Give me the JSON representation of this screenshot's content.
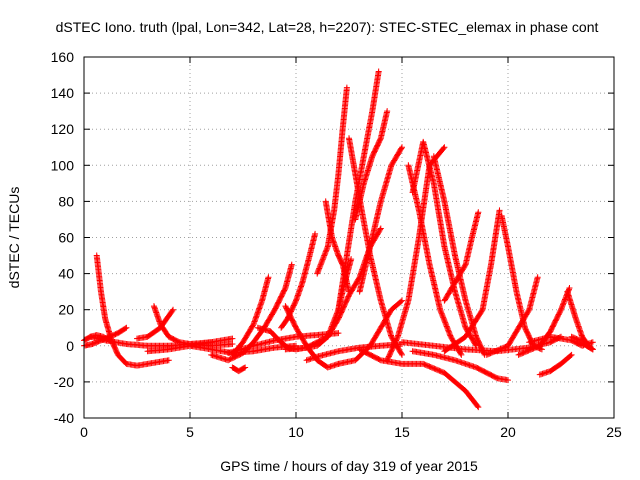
{
  "chart_data": {
    "type": "scatter",
    "title": "dSTEC Iono. truth (lpal, Lon=342, Lat=28, h=2207): STEC-STEC_elemax in phase cont",
    "xlabel": "GPS time / hours of day 319 of year 2015",
    "ylabel": "dSTEC  / TECUs",
    "xlim": [
      0,
      25
    ],
    "ylim": [
      -40,
      160
    ],
    "x_ticks": [
      0,
      5,
      10,
      15,
      20,
      25
    ],
    "y_ticks": [
      -40,
      -20,
      0,
      20,
      40,
      60,
      80,
      100,
      120,
      140,
      160
    ],
    "grid": true,
    "marker": "+",
    "series_color": "#ff0000",
    "arcs": [
      {
        "x": [
          0.0,
          0.3,
          0.6,
          0.9,
          1.2
        ],
        "y": [
          3,
          5,
          6,
          5,
          3
        ]
      },
      {
        "x": [
          0.0,
          0.4,
          0.8,
          1.2,
          1.6,
          2.0
        ],
        "y": [
          0,
          1,
          3,
          5,
          7,
          10
        ]
      },
      {
        "x": [
          0.6,
          0.8,
          1.0,
          1.3,
          1.6,
          2.0,
          2.5,
          3.0,
          3.5,
          4.0
        ],
        "y": [
          50,
          30,
          15,
          3,
          -5,
          -10,
          -11,
          -10,
          -9,
          -8
        ]
      },
      {
        "x": [
          0.3,
          1.0,
          2.0,
          3.0,
          4.0,
          5.0,
          6.0
        ],
        "y": [
          5,
          3,
          1,
          0,
          0,
          1,
          2
        ]
      },
      {
        "x": [
          3.3,
          3.6,
          4.0,
          4.5,
          5.0,
          6.0,
          7.0
        ],
        "y": [
          22,
          12,
          5,
          2,
          1,
          0,
          1
        ]
      },
      {
        "x": [
          2.5,
          3.0,
          3.6,
          4.2
        ],
        "y": [
          4,
          5,
          10,
          20
        ]
      },
      {
        "x": [
          3.0,
          4.0,
          5.0,
          6.0,
          7.0
        ],
        "y": [
          -3,
          -2,
          0,
          2,
          4
        ]
      },
      {
        "x": [
          5.0,
          6.0,
          7.0,
          8.0,
          9.0,
          10.0
        ],
        "y": [
          0,
          -2,
          -4,
          -3,
          -1,
          0
        ]
      },
      {
        "x": [
          7.0,
          7.5,
          8.0,
          8.4,
          8.7
        ],
        "y": [
          -5,
          2,
          12,
          25,
          38
        ]
      },
      {
        "x": [
          6.0,
          6.8,
          7.5,
          8.0,
          8.5,
          9.0,
          9.5,
          9.8
        ],
        "y": [
          -5,
          -8,
          -4,
          2,
          10,
          20,
          32,
          45
        ]
      },
      {
        "x": [
          7.0,
          7.3,
          7.6
        ],
        "y": [
          -12,
          -14,
          -12
        ]
      },
      {
        "x": [
          6.8,
          8.0,
          9.0,
          10.0,
          11.0,
          12.0
        ],
        "y": [
          -4,
          0,
          3,
          5,
          6,
          7
        ]
      },
      {
        "x": [
          8.2,
          8.8,
          9.2,
          9.6,
          10.0
        ],
        "y": [
          10,
          8,
          3,
          -1,
          -2
        ]
      },
      {
        "x": [
          9.3,
          9.6,
          10.0,
          10.3,
          10.6,
          10.9
        ],
        "y": [
          10,
          15,
          25,
          35,
          48,
          62
        ]
      },
      {
        "x": [
          9.5,
          10.0,
          10.5,
          11.0,
          11.5,
          12.0
        ],
        "y": [
          22,
          10,
          0,
          -8,
          -12,
          -10
        ]
      },
      {
        "x": [
          9.5,
          10.5,
          11.5,
          12.0,
          12.3,
          12.6
        ],
        "y": [
          -2,
          -1,
          5,
          20,
          35,
          48
        ]
      },
      {
        "x": [
          10.0,
          11.0,
          11.5,
          12.0,
          12.5,
          13.0,
          13.5,
          14.0
        ],
        "y": [
          -2,
          0,
          5,
          15,
          28,
          38,
          55,
          65
        ]
      },
      {
        "x": [
          11.4,
          11.7,
          12.0,
          12.2,
          12.5
        ],
        "y": [
          80,
          60,
          50,
          45,
          30
        ]
      },
      {
        "x": [
          11.0,
          11.5,
          11.8,
          12.0,
          12.2,
          12.4
        ],
        "y": [
          40,
          55,
          75,
          95,
          120,
          143
        ]
      },
      {
        "x": [
          10.5,
          11.0,
          12.0,
          13.0,
          14.0,
          15.0
        ],
        "y": [
          -8,
          -6,
          -3,
          -1,
          0,
          1
        ]
      },
      {
        "x": [
          12.0,
          12.4,
          12.8,
          13.2,
          13.6,
          13.9
        ],
        "y": [
          20,
          50,
          80,
          105,
          130,
          152
        ]
      },
      {
        "x": [
          12.5,
          12.8,
          13.1,
          13.5,
          14.0,
          14.5,
          15.0
        ],
        "y": [
          115,
          95,
          75,
          50,
          25,
          5,
          -5
        ]
      },
      {
        "x": [
          12.8,
          13.2,
          13.6,
          14.0,
          14.3
        ],
        "y": [
          70,
          90,
          105,
          115,
          130
        ]
      },
      {
        "x": [
          13.0,
          13.5,
          14.0,
          14.5,
          15.0
        ],
        "y": [
          30,
          55,
          80,
          100,
          110
        ]
      },
      {
        "x": [
          12.0,
          12.8,
          13.5,
          14.0,
          14.5,
          15.0
        ],
        "y": [
          -10,
          -8,
          0,
          10,
          20,
          25
        ]
      },
      {
        "x": [
          13.0,
          14.0,
          15.0,
          16.0,
          17.0,
          18.0,
          18.6
        ],
        "y": [
          -2,
          -8,
          -10,
          -10,
          -15,
          -25,
          -34
        ]
      },
      {
        "x": [
          14.3,
          14.8,
          15.3,
          15.8,
          16.3,
          17.0
        ],
        "y": [
          -8,
          5,
          25,
          60,
          100,
          110
        ]
      },
      {
        "x": [
          15.3,
          15.8,
          16.3,
          16.8,
          17.3,
          17.8
        ],
        "y": [
          100,
          75,
          45,
          20,
          5,
          -5
        ]
      },
      {
        "x": [
          15.5,
          16.0,
          16.5,
          17.0,
          17.5,
          18.0,
          18.5
        ],
        "y": [
          85,
          113,
          90,
          55,
          30,
          10,
          0
        ]
      },
      {
        "x": [
          16.5,
          17.0,
          17.5,
          18.0,
          18.5,
          18.9
        ],
        "y": [
          105,
          80,
          50,
          25,
          5,
          -5
        ]
      },
      {
        "x": [
          17.0,
          17.5,
          18.0,
          18.3,
          18.6
        ],
        "y": [
          25,
          35,
          45,
          60,
          74
        ]
      },
      {
        "x": [
          17.0,
          18.0,
          18.8,
          19.2,
          19.6
        ],
        "y": [
          -3,
          5,
          20,
          45,
          75
        ]
      },
      {
        "x": [
          15.5,
          16.5,
          17.5,
          18.5,
          19.5,
          20.0
        ],
        "y": [
          -3,
          -5,
          -8,
          -12,
          -18,
          -19
        ]
      },
      {
        "x": [
          19.7,
          20.0,
          20.4,
          20.8,
          21.2,
          21.6
        ],
        "y": [
          72,
          55,
          30,
          10,
          0,
          -2
        ]
      },
      {
        "x": [
          19.0,
          20.0,
          20.5,
          21.0,
          21.4
        ],
        "y": [
          -5,
          0,
          10,
          20,
          38
        ]
      },
      {
        "x": [
          15.0,
          16.5,
          18.0,
          19.5,
          21.0,
          22.0,
          22.5
        ],
        "y": [
          2,
          0,
          -2,
          -3,
          -1,
          2,
          5
        ]
      },
      {
        "x": [
          20.5,
          21.5,
          22.0,
          22.5,
          22.9
        ],
        "y": [
          -5,
          0,
          8,
          20,
          32
        ]
      },
      {
        "x": [
          21.5,
          22.0,
          22.5,
          23.0
        ],
        "y": [
          -16,
          -14,
          -10,
          -5
        ]
      },
      {
        "x": [
          22.8,
          23.2,
          23.5,
          23.8,
          24.0
        ],
        "y": [
          30,
          15,
          5,
          0,
          -2
        ]
      },
      {
        "x": [
          21.0,
          22.0,
          23.0,
          23.5,
          24.0
        ],
        "y": [
          2,
          5,
          3,
          0,
          2
        ]
      },
      {
        "x": [
          23.0,
          23.4,
          23.7,
          24.0
        ],
        "y": [
          5,
          3,
          0,
          -2
        ]
      }
    ]
  }
}
